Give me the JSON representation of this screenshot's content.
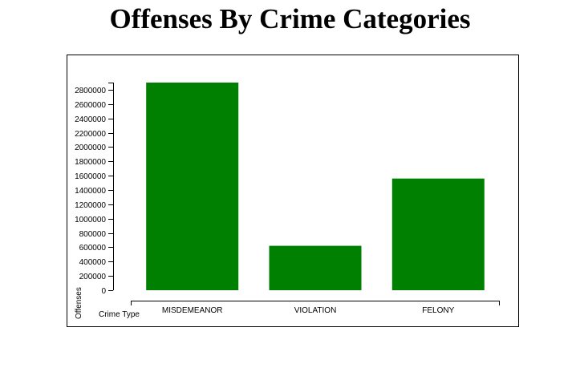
{
  "title": "Offenses By Crime Categories",
  "chart_data": {
    "type": "bar",
    "categories": [
      "MISDEMEANOR",
      "VIOLATION",
      "FELONY"
    ],
    "values": [
      2900000,
      620000,
      1560000
    ],
    "xlabel": "Crime Type",
    "ylabel": "Offenses",
    "ylim": [
      0,
      2900000
    ],
    "yticks": [
      0,
      200000,
      400000,
      600000,
      800000,
      1000000,
      1200000,
      1400000,
      1600000,
      1800000,
      2000000,
      2200000,
      2400000,
      2600000,
      2800000
    ],
    "bar_color": "#008000",
    "grid": false,
    "legend": "none"
  }
}
